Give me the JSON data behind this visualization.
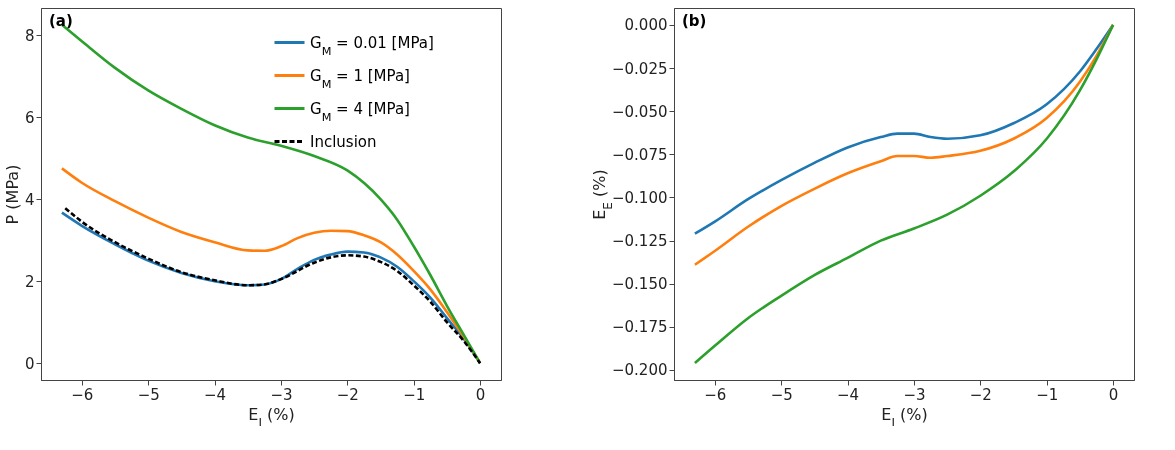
{
  "chart_data": [
    {
      "type": "line",
      "annotations": [
        "(a)"
      ],
      "xlabel": "E$_{I}$ (%)",
      "ylabel": "P (MPa)",
      "xlim": [
        -6.615,
        0.315
      ],
      "ylim": [
        -0.41,
        8.66
      ],
      "xticks": [
        {
          "value": -6,
          "label": "−6"
        },
        {
          "value": -5,
          "label": "−5"
        },
        {
          "value": -4,
          "label": "−4"
        },
        {
          "value": -3,
          "label": "−3"
        },
        {
          "value": -2,
          "label": "−2"
        },
        {
          "value": -1,
          "label": "−1"
        },
        0
      ],
      "yticks": [
        0,
        2,
        4,
        6,
        8
      ],
      "grid": false,
      "legend": "top right",
      "series": [
        {
          "name": "G$_{M}$ = 0.01 [MPa]",
          "color": "#1f77b4",
          "line_style": "solid",
          "x": [
            -6.3,
            -6,
            -5.5,
            -5,
            -4.5,
            -4,
            -3.5,
            -3.25,
            -3,
            -2.75,
            -2.5,
            -2.25,
            -2,
            -1.75,
            -1.5,
            -1.25,
            -1,
            -0.75,
            -0.5,
            -0.25,
            0
          ],
          "values": [
            3.67,
            3.35,
            2.9,
            2.5,
            2.2,
            2.0,
            1.9,
            1.92,
            2.05,
            2.3,
            2.52,
            2.65,
            2.72,
            2.7,
            2.58,
            2.35,
            2.0,
            1.6,
            1.1,
            0.6,
            0
          ]
        },
        {
          "name": "G$_{M}$ = 1 [MPa]",
          "color": "#ff7f0e",
          "line_style": "solid",
          "x": [
            -6.3,
            -6,
            -5.5,
            -5,
            -4.5,
            -4,
            -3.5,
            -3.25,
            -3,
            -2.75,
            -2.5,
            -2.25,
            -2,
            -1.75,
            -1.5,
            -1.25,
            -1,
            -0.75,
            -0.5,
            -0.25,
            0
          ],
          "values": [
            4.75,
            4.4,
            3.95,
            3.55,
            3.2,
            2.95,
            2.75,
            2.74,
            2.85,
            3.05,
            3.18,
            3.23,
            3.22,
            3.12,
            2.95,
            2.65,
            2.25,
            1.8,
            1.25,
            0.65,
            0
          ]
        },
        {
          "name": "G$_{M}$ = 4 [MPa]",
          "color": "#2ca02c",
          "line_style": "solid",
          "x": [
            -6.3,
            -6,
            -5.5,
            -5,
            -4.5,
            -4,
            -3.5,
            -3,
            -2.5,
            -2,
            -1.5,
            -1.25,
            -1,
            -0.75,
            -0.5,
            -0.25,
            0
          ],
          "values": [
            8.25,
            7.85,
            7.2,
            6.65,
            6.2,
            5.8,
            5.5,
            5.3,
            5.05,
            4.7,
            4.0,
            3.5,
            2.85,
            2.15,
            1.4,
            0.7,
            0
          ]
        },
        {
          "name": "Inclusion",
          "color": "#000000",
          "line_style": "dashed",
          "x": [
            -6.25,
            -6,
            -5.5,
            -5,
            -4.5,
            -4,
            -3.5,
            -3.25,
            -3,
            -2.5,
            -2.25,
            -2,
            -1.75,
            -1.5,
            -1.25,
            -1,
            -0.75,
            -0.5,
            -0.25,
            0
          ],
          "values": [
            3.78,
            3.45,
            2.95,
            2.55,
            2.22,
            2.02,
            1.9,
            1.92,
            2.05,
            2.45,
            2.58,
            2.63,
            2.6,
            2.47,
            2.25,
            1.9,
            1.5,
            1.0,
            0.55,
            0
          ]
        }
      ]
    },
    {
      "type": "line",
      "annotations": [
        "(b)"
      ],
      "xlabel": "E$_{I}$ (%)",
      "ylabel": "E$_{E}$ (%)",
      "xlim": [
        -6.615,
        0.315
      ],
      "ylim": [
        -0.2058,
        0.0098
      ],
      "xticks": [
        {
          "value": -6,
          "label": "−6"
        },
        {
          "value": -5,
          "label": "−5"
        },
        {
          "value": -4,
          "label": "−4"
        },
        {
          "value": -3,
          "label": "−3"
        },
        {
          "value": -2,
          "label": "−2"
        },
        {
          "value": -1,
          "label": "−1"
        },
        0
      ],
      "yticks": [
        {
          "value": 0,
          "label": "0.000"
        },
        {
          "value": -0.025,
          "label": "−0.025"
        },
        {
          "value": -0.05,
          "label": "−0.050"
        },
        {
          "value": -0.075,
          "label": "−0.075"
        },
        {
          "value": -0.1,
          "label": "−0.100"
        },
        {
          "value": -0.125,
          "label": "−0.125"
        },
        {
          "value": -0.15,
          "label": "−0.150"
        },
        {
          "value": -0.175,
          "label": "−0.175"
        },
        {
          "value": -0.2,
          "label": "−0.200"
        }
      ],
      "grid": false,
      "series": [
        {
          "color": "#1f77b4",
          "x": [
            -6.3,
            -6,
            -5.5,
            -5,
            -4.5,
            -4,
            -3.5,
            -3.25,
            -3,
            -2.75,
            -2.5,
            -2,
            -1.5,
            -1,
            -0.5,
            -0.25,
            0
          ],
          "values": [
            -0.121,
            -0.114,
            -0.101,
            -0.09,
            -0.08,
            -0.071,
            -0.065,
            -0.063,
            -0.063,
            -0.065,
            -0.066,
            -0.064,
            -0.057,
            -0.046,
            -0.027,
            -0.014,
            0
          ]
        },
        {
          "color": "#ff7f0e",
          "x": [
            -6.3,
            -6,
            -5.5,
            -5,
            -4.5,
            -4,
            -3.5,
            -3.25,
            -3,
            -2.75,
            -2.5,
            -2,
            -1.5,
            -1,
            -0.5,
            -0.25,
            0
          ],
          "values": [
            -0.139,
            -0.131,
            -0.117,
            -0.105,
            -0.095,
            -0.086,
            -0.079,
            -0.076,
            -0.076,
            -0.077,
            -0.076,
            -0.073,
            -0.066,
            -0.054,
            -0.033,
            -0.018,
            0
          ]
        },
        {
          "color": "#2ca02c",
          "x": [
            -6.3,
            -6,
            -5.5,
            -5,
            -4.5,
            -4,
            -3.5,
            -3,
            -2.5,
            -2,
            -1.5,
            -1,
            -0.5,
            -0.25,
            0
          ],
          "values": [
            -0.196,
            -0.186,
            -0.17,
            -0.157,
            -0.145,
            -0.135,
            -0.125,
            -0.118,
            -0.11,
            -0.099,
            -0.085,
            -0.066,
            -0.038,
            -0.02,
            0
          ]
        }
      ]
    }
  ]
}
